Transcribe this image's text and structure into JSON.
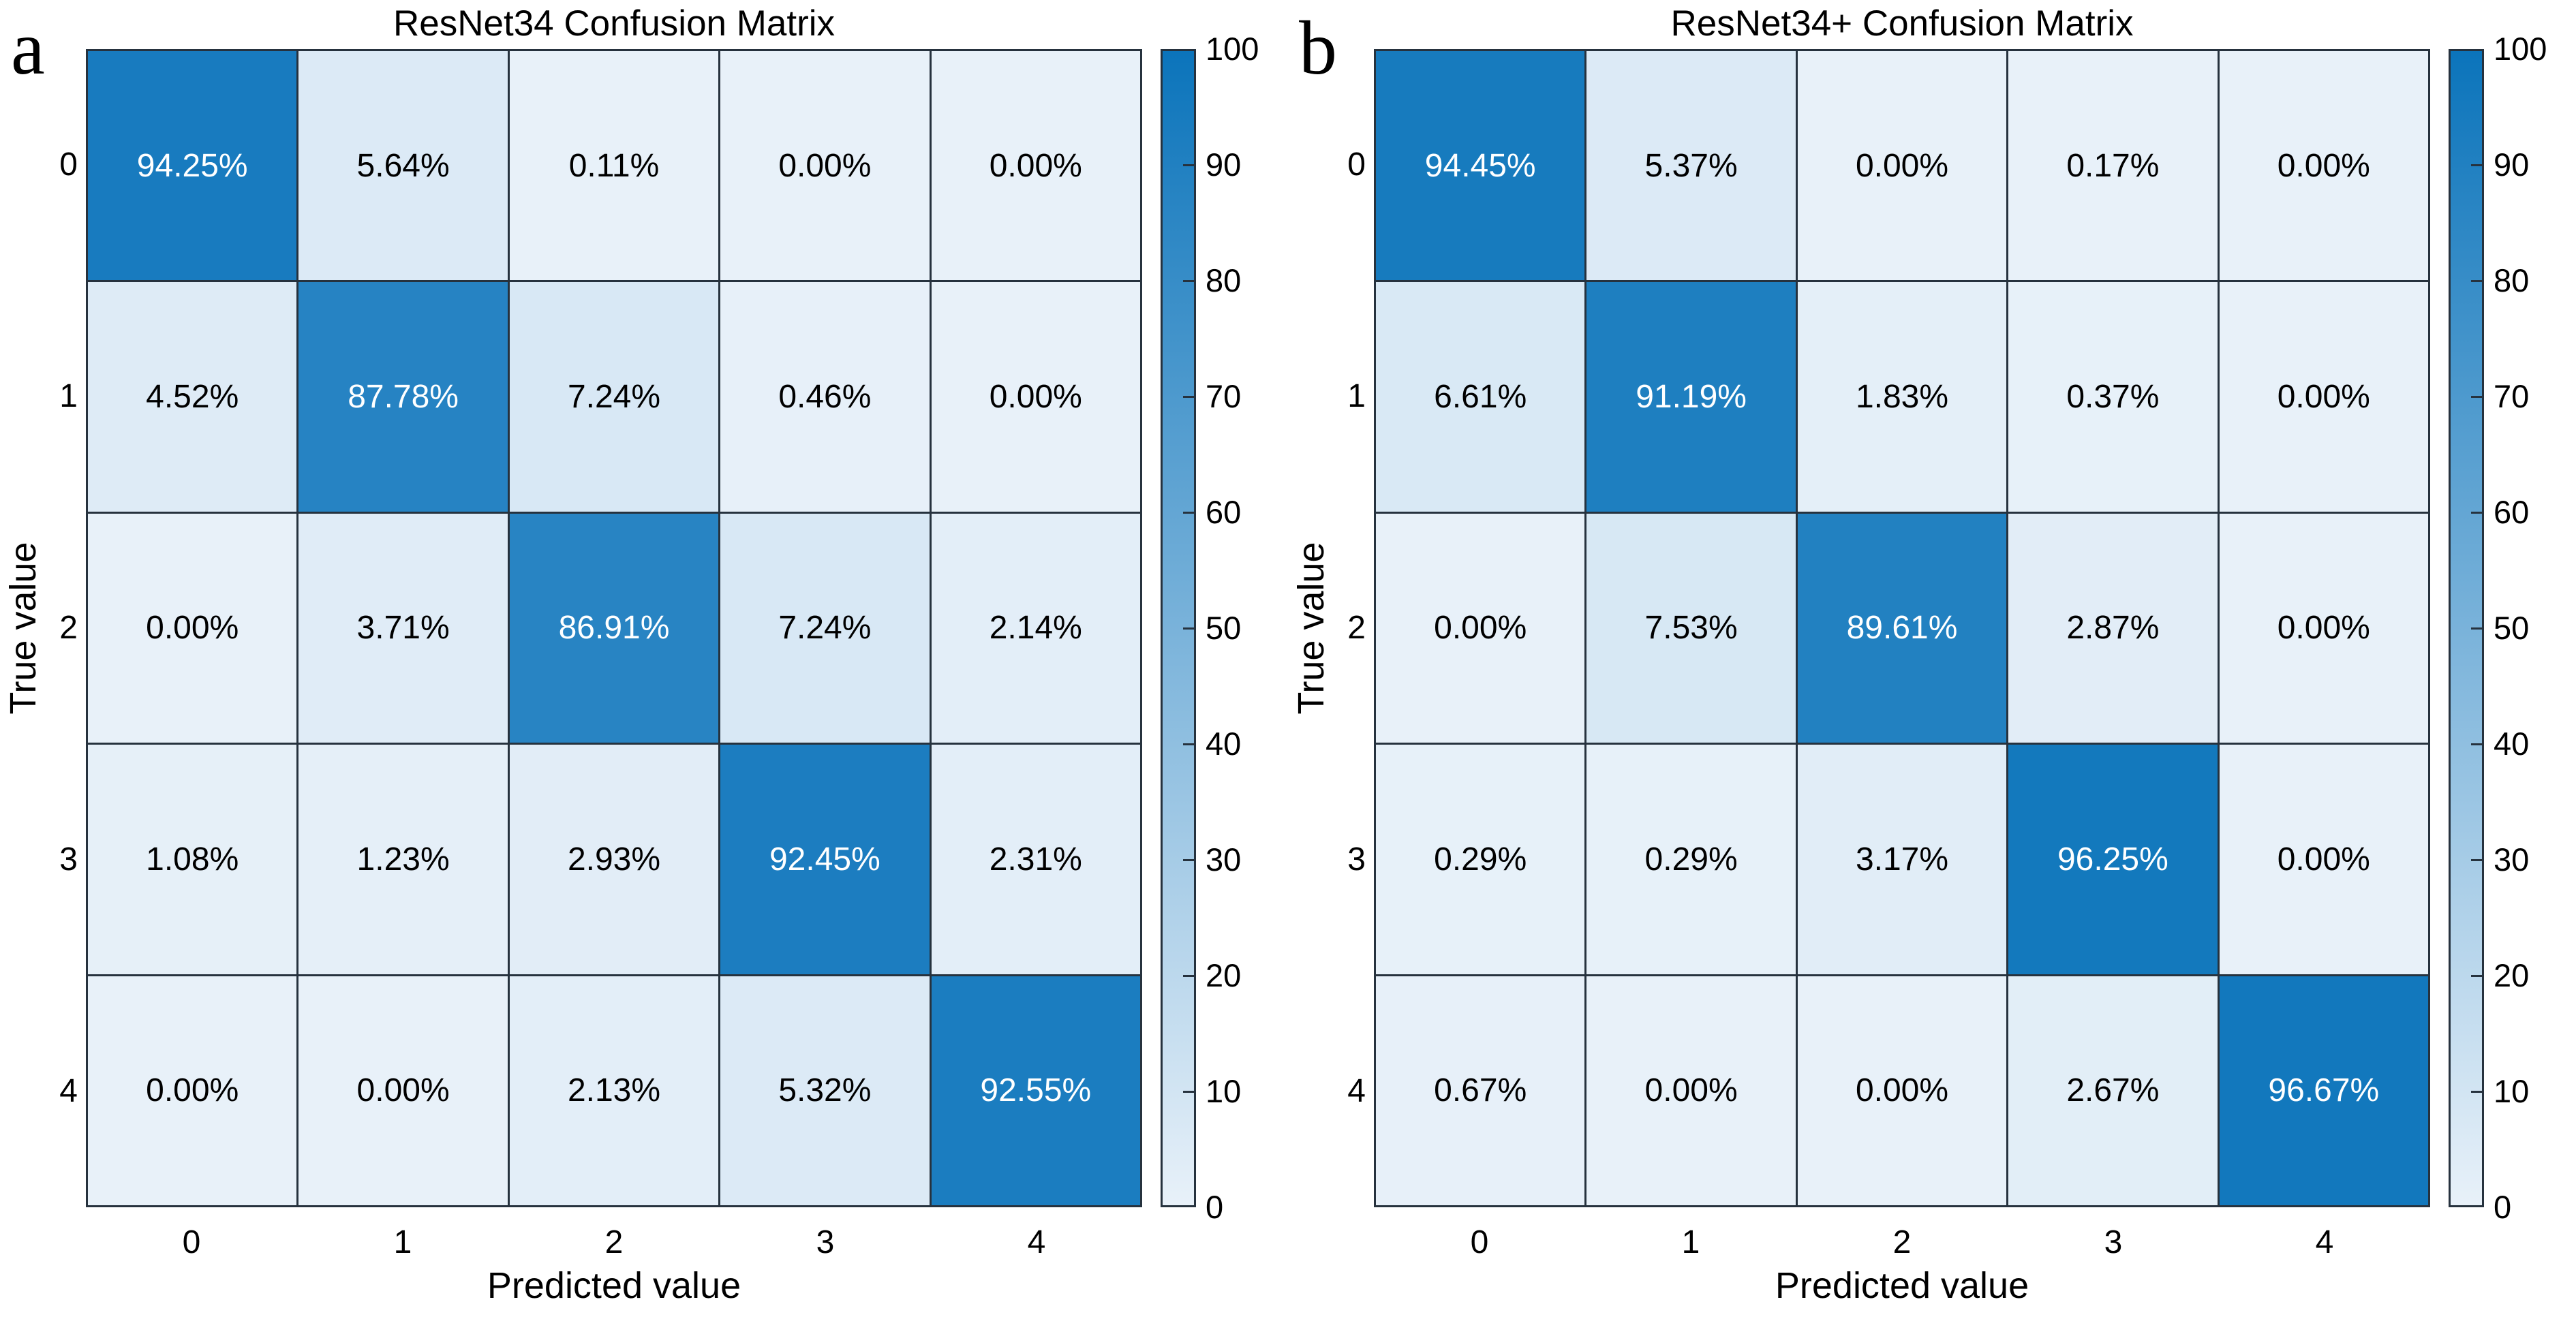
{
  "figure": {
    "background": "#ffffff",
    "grid_line_color": "#26323e",
    "cell_text_light": "#ffffff",
    "cell_text_dark": "#000000"
  },
  "chart_data": [
    {
      "type": "heatmap",
      "panel_label": "a",
      "title": "ResNet34 Confusion Matrix",
      "xlabel": "Predicted value",
      "ylabel": "True value",
      "x_tick_labels": [
        "0",
        "1",
        "2",
        "3",
        "4"
      ],
      "y_tick_labels": [
        "0",
        "1",
        "2",
        "3",
        "4"
      ],
      "cell_unit": "%",
      "matrix_percent": [
        [
          94.25,
          5.64,
          0.11,
          0.0,
          0.0
        ],
        [
          4.52,
          87.78,
          7.24,
          0.46,
          0.0
        ],
        [
          0.0,
          3.71,
          86.91,
          7.24,
          2.14
        ],
        [
          1.08,
          1.23,
          2.93,
          92.45,
          2.31
        ],
        [
          0.0,
          0.0,
          2.13,
          5.32,
          92.55
        ]
      ],
      "colorbar": {
        "min": 0,
        "max": 100,
        "tick_labels": [
          "0",
          "10",
          "20",
          "30",
          "40",
          "50",
          "60",
          "70",
          "80",
          "90",
          "100"
        ],
        "position": "right"
      },
      "colormap": {
        "low": "#e8f1f9",
        "high": "#0b74bb"
      }
    },
    {
      "type": "heatmap",
      "panel_label": "b",
      "title": "ResNet34+ Confusion Matrix",
      "xlabel": "Predicted value",
      "ylabel": "True value",
      "x_tick_labels": [
        "0",
        "1",
        "2",
        "3",
        "4"
      ],
      "y_tick_labels": [
        "0",
        "1",
        "2",
        "3",
        "4"
      ],
      "cell_unit": "%",
      "matrix_percent": [
        [
          94.45,
          5.37,
          0.0,
          0.17,
          0.0
        ],
        [
          6.61,
          91.19,
          1.83,
          0.37,
          0.0
        ],
        [
          0.0,
          7.53,
          89.61,
          2.87,
          0.0
        ],
        [
          0.29,
          0.29,
          3.17,
          96.25,
          0.0
        ],
        [
          0.67,
          0.0,
          0.0,
          2.67,
          96.67
        ]
      ],
      "colorbar": {
        "min": 0,
        "max": 100,
        "tick_labels": [
          "0",
          "10",
          "20",
          "30",
          "40",
          "50",
          "60",
          "70",
          "80",
          "90",
          "100"
        ],
        "position": "right"
      },
      "colormap": {
        "low": "#e8f1f9",
        "high": "#0b74bb"
      }
    }
  ]
}
